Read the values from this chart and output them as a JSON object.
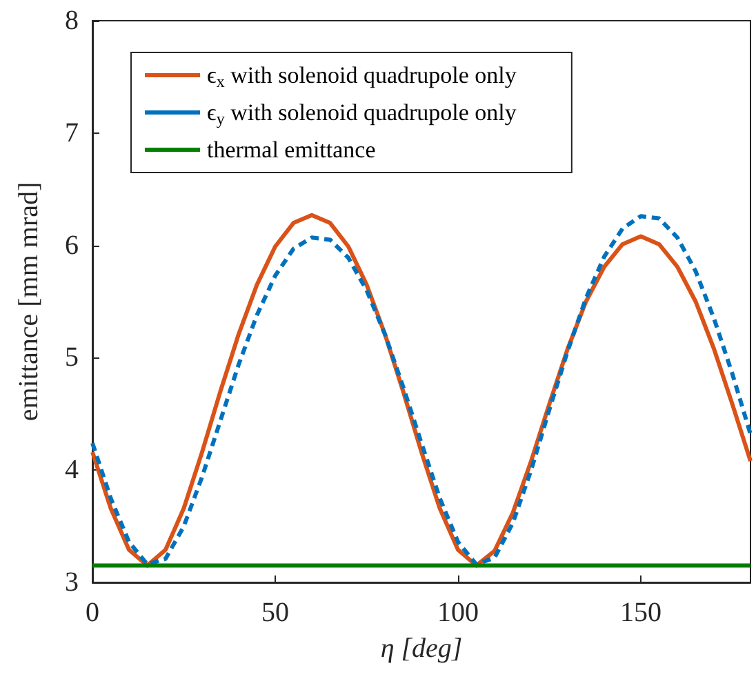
{
  "chart_data": {
    "type": "line",
    "xlabel": "η [deg]",
    "ylabel": "emittance [mm mrad]",
    "x": [
      0,
      5,
      10,
      15,
      20,
      25,
      30,
      35,
      40,
      45,
      50,
      55,
      60,
      65,
      70,
      75,
      80,
      85,
      90,
      95,
      100,
      105,
      110,
      115,
      120,
      125,
      130,
      135,
      140,
      145,
      150,
      155,
      160,
      165,
      170,
      175,
      180
    ],
    "series": [
      {
        "name": "ϵ$_{x}$ with solenoid quadrupole only",
        "color": "#d95319",
        "line_style": "solid",
        "values": [
          4.16,
          3.66,
          3.29,
          3.15,
          3.29,
          3.66,
          4.16,
          4.7,
          5.21,
          5.65,
          5.99,
          6.2,
          6.27,
          6.2,
          5.99,
          5.65,
          5.21,
          4.7,
          4.16,
          3.66,
          3.29,
          3.15,
          3.28,
          3.62,
          4.08,
          4.59,
          5.08,
          5.5,
          5.81,
          6.01,
          6.08,
          6.01,
          5.81,
          5.5,
          5.08,
          4.59,
          4.08
        ]
      },
      {
        "name": "ϵ$_{y}$ with solenoid quadrupole only",
        "color": "#0072bd",
        "line_style": "dashed",
        "values": [
          4.24,
          3.75,
          3.36,
          3.16,
          3.21,
          3.5,
          3.94,
          4.44,
          4.94,
          5.38,
          5.73,
          5.97,
          6.07,
          6.05,
          5.89,
          5.6,
          5.21,
          4.74,
          4.24,
          3.75,
          3.36,
          3.16,
          3.22,
          3.53,
          4.0,
          4.54,
          5.06,
          5.53,
          5.9,
          6.15,
          6.26,
          6.24,
          6.07,
          5.77,
          5.35,
          4.86,
          4.32
        ]
      },
      {
        "name": "thermal emittance",
        "color": "#008000",
        "line_style": "solid",
        "values": [
          3.15,
          3.15,
          3.15,
          3.15,
          3.15,
          3.15,
          3.15,
          3.15,
          3.15,
          3.15,
          3.15,
          3.15,
          3.15,
          3.15,
          3.15,
          3.15,
          3.15,
          3.15,
          3.15,
          3.15,
          3.15,
          3.15,
          3.15,
          3.15,
          3.15,
          3.15,
          3.15,
          3.15,
          3.15,
          3.15,
          3.15,
          3.15,
          3.15,
          3.15,
          3.15,
          3.15,
          3.15
        ]
      }
    ],
    "xlim": [
      0,
      180
    ],
    "xticks": [
      0,
      50,
      100,
      150
    ],
    "ylim": [
      3,
      8
    ],
    "yticks": [
      3,
      4,
      5,
      6,
      7,
      8
    ],
    "grid": false,
    "legend": "top left",
    "marker": "none"
  }
}
